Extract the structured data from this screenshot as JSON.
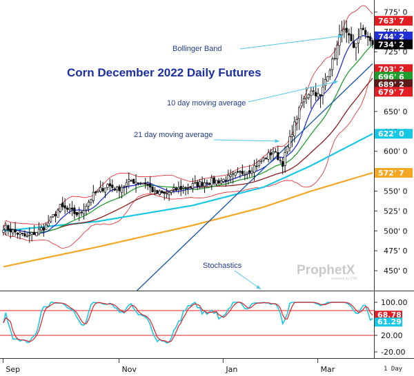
{
  "chart_data": {
    "type": "line",
    "title": "Corn December 2022 Daily Futures",
    "price_ticks": [
      "775' 0",
      "750' 0",
      "725' 0",
      "700' 0",
      "675' 0",
      "650' 0",
      "625' 0",
      "600' 0",
      "575' 0",
      "550' 0",
      "525' 0",
      "500' 0",
      "475' 0",
      "450' 0"
    ],
    "price_tick_values": [
      775,
      750,
      725,
      700,
      675,
      650,
      625,
      600,
      575,
      550,
      525,
      500,
      475,
      450
    ],
    "price_range": [
      425,
      790
    ],
    "osc_ticks": [
      "100.00",
      "20.00",
      "-20.00"
    ],
    "osc_tick_values": [
      100,
      20,
      -20
    ],
    "osc_range": [
      -35,
      125
    ],
    "overbought_level": 80,
    "oversold_level": 20,
    "x_labels": [
      "Sep",
      "Nov",
      "Jan",
      "Mar"
    ],
    "x_label_index": [
      1,
      50,
      94,
      134
    ],
    "timeframe": "1 Day",
    "annotations": {
      "bollinger": "Bollinger Band",
      "ma10": "10 day moving average",
      "ma21": "21 day moving average",
      "stochastics": "Stochastics"
    },
    "watermark": "ProphetX",
    "watermark_sub": "powered by DTN",
    "price_labels": [
      {
        "text": "763' 7",
        "value": 763.9,
        "color": "#e01e24"
      },
      {
        "text": "744' 2",
        "value": 744.25,
        "color": "#1e2fd6"
      },
      {
        "text": "734' 2",
        "value": 734.25,
        "color": "#000000"
      },
      {
        "text": "703' 2",
        "value": 703.25,
        "color": "#e01e24"
      },
      {
        "text": "696' 6",
        "value": 696.75,
        "color": "#1f9e2e"
      },
      {
        "text": "689' 2",
        "value": 689.25,
        "color": "#5a1a1a"
      },
      {
        "text": "679' 7",
        "value": 679.9,
        "color": "#e01e24"
      },
      {
        "text": "622' 0",
        "value": 622.0,
        "color": "#17c7e6"
      },
      {
        "text": "572' 7",
        "value": 572.9,
        "color": "#f5a623"
      }
    ],
    "osc_labels": [
      {
        "text": "68.78",
        "value": 68.78,
        "color": "#e01e24"
      },
      {
        "text": "61.29",
        "value": 61.29,
        "color": "#17c7e6"
      }
    ],
    "close_anchors": [
      [
        0,
        505
      ],
      [
        6,
        497
      ],
      [
        10,
        492
      ],
      [
        14,
        499
      ],
      [
        18,
        506
      ],
      [
        24,
        530
      ],
      [
        28,
        525
      ],
      [
        32,
        520
      ],
      [
        38,
        545
      ],
      [
        44,
        558
      ],
      [
        48,
        552
      ],
      [
        54,
        563
      ],
      [
        60,
        560
      ],
      [
        64,
        548
      ],
      [
        68,
        546
      ],
      [
        74,
        553
      ],
      [
        80,
        557
      ],
      [
        86,
        562
      ],
      [
        92,
        563
      ],
      [
        98,
        570
      ],
      [
        104,
        577
      ],
      [
        110,
        590
      ],
      [
        114,
        600
      ],
      [
        118,
        585
      ],
      [
        122,
        625
      ],
      [
        126,
        660
      ],
      [
        130,
        678
      ],
      [
        134,
        668
      ],
      [
        136,
        690
      ],
      [
        140,
        720
      ],
      [
        143,
        755
      ],
      [
        146,
        742
      ],
      [
        148,
        728
      ],
      [
        151,
        752
      ],
      [
        154,
        745
      ],
      [
        156,
        734
      ]
    ],
    "series": [
      {
        "name": "Bollinger Band",
        "color": "#e01e24"
      },
      {
        "name": "10 day moving average",
        "color": "#1e2fd6"
      },
      {
        "name": "21 day moving average",
        "color": "#1f9e2e"
      },
      {
        "color": "#8b1a1a"
      },
      {
        "color": "#17c7e6"
      },
      {
        "color": "#f5a623"
      }
    ],
    "overlay_lines": {
      "ma_cyan_anchors": [
        [
          0,
          500
        ],
        [
          40,
          512
        ],
        [
          80,
          532
        ],
        [
          110,
          555
        ],
        [
          130,
          582
        ],
        [
          156,
          622
        ]
      ],
      "ma_orange_anchors": [
        [
          0,
          455
        ],
        [
          40,
          480
        ],
        [
          80,
          507
        ],
        [
          110,
          530
        ],
        [
          130,
          550
        ],
        [
          156,
          573
        ]
      ],
      "trendline": [
        [
          54,
          418
        ],
        [
          156,
          710
        ]
      ]
    },
    "grid": false
  }
}
